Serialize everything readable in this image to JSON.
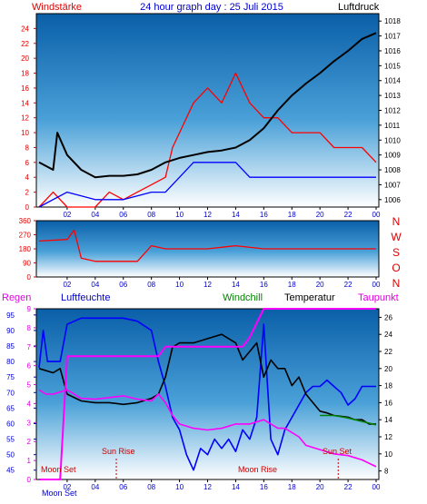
{
  "header": {
    "title": "24 hour graph day : 25 Juli 2015",
    "left_label": "Windstärke",
    "right_label": "Luftdruck"
  },
  "panel3_labels": {
    "regen": "Regen",
    "luftfeuchte": "Luftfeuchte",
    "windchill": "Windchill",
    "temperatur": "Temperatur",
    "taupunkt": "Taupunkt"
  },
  "compass_labels": [
    "N",
    "W",
    "S",
    "O",
    "N"
  ],
  "annotations": {
    "moon_set": "Moon Set",
    "sun_rise": "Sun Rise",
    "moon_rise": "Moon Rise",
    "sun_set": "Sun Set"
  },
  "colors": {
    "panel_top": "#0a5fa8",
    "panel_bottom": "#ffffff",
    "wind": "#ff0000",
    "gust": "#0000ff",
    "pressure": "#000000",
    "humidity": "#0000ff",
    "temperature": "#000000",
    "dewpoint": "#ff00ff",
    "rain": "#ff00ff",
    "windchill": "#008000",
    "border": "#000000"
  },
  "chart_data": [
    {
      "type": "line",
      "name": "wind-pressure",
      "x_ticks": [
        "02",
        "04",
        "06",
        "08",
        "10",
        "12",
        "14",
        "16",
        "18",
        "20",
        "22",
        "00"
      ],
      "left_axis": {
        "label": "Windstärke",
        "ticks": [
          0,
          2,
          4,
          6,
          8,
          10,
          12,
          14,
          16,
          18,
          20,
          22,
          24
        ],
        "ylim": [
          0,
          26
        ]
      },
      "right_axis": {
        "label": "Luftdruck",
        "ticks": [
          1006,
          1007,
          1008,
          1009,
          1010,
          1011,
          1012,
          1013,
          1014,
          1015,
          1016,
          1017,
          1018
        ],
        "ylim": [
          1005.5,
          1018.5
        ]
      },
      "series": [
        {
          "key": "windstaerke",
          "axis": "left",
          "x": [
            0,
            1,
            2,
            3,
            4,
            5,
            6,
            7,
            8,
            9,
            9.5,
            10,
            11,
            12,
            13,
            14,
            15,
            16,
            17,
            18,
            19,
            20,
            21,
            22,
            23,
            24
          ],
          "values": [
            0,
            2,
            0,
            0,
            0,
            2,
            1,
            2,
            3,
            4,
            8,
            10,
            14,
            16,
            14,
            18,
            14,
            12,
            12,
            10,
            10,
            10,
            8,
            8,
            8,
            6
          ]
        },
        {
          "key": "boeen",
          "axis": "left",
          "x": [
            0,
            2,
            4,
            6,
            8,
            9,
            10,
            11,
            12,
            13,
            14,
            15,
            16,
            17,
            18,
            19,
            20,
            21,
            22,
            23,
            24
          ],
          "values": [
            0,
            2,
            1,
            1,
            2,
            2,
            4,
            6,
            6,
            6,
            6,
            4,
            4,
            4,
            4,
            4,
            4,
            4,
            4,
            4,
            4
          ]
        },
        {
          "key": "luftdruck",
          "axis": "right",
          "x": [
            0,
            1,
            1.3,
            2,
            3,
            4,
            5,
            6,
            7,
            8,
            9,
            10,
            11,
            12,
            13,
            14,
            15,
            16,
            17,
            18,
            19,
            20,
            21,
            22,
            23,
            24
          ],
          "values": [
            1008.5,
            1008,
            1010.5,
            1009,
            1008,
            1007.5,
            1007.6,
            1007.6,
            1007.7,
            1008,
            1008.5,
            1008.8,
            1009,
            1009.2,
            1009.3,
            1009.5,
            1010,
            1010.8,
            1012,
            1013,
            1013.8,
            1014.5,
            1015.3,
            1016,
            1016.8,
            1017.2
          ]
        }
      ]
    },
    {
      "type": "line",
      "name": "wind-direction",
      "x_ticks": [
        "02",
        "04",
        "06",
        "08",
        "10",
        "12",
        "14",
        "16",
        "18",
        "20",
        "22",
        "00"
      ],
      "left_axis": {
        "ticks": [
          0,
          90,
          180,
          270,
          360
        ],
        "ylim": [
          0,
          360
        ]
      },
      "right_axis": {
        "ticks": [
          "N",
          "W",
          "S",
          "O",
          "N"
        ]
      },
      "series": [
        {
          "key": "windrichtung",
          "x": [
            0,
            2,
            2.5,
            3,
            4,
            5,
            6,
            7,
            8,
            9,
            10,
            12,
            14,
            16,
            18,
            20,
            22,
            24
          ],
          "values": [
            230,
            240,
            300,
            120,
            100,
            100,
            100,
            100,
            200,
            180,
            180,
            180,
            200,
            180,
            180,
            180,
            180,
            180
          ]
        }
      ]
    },
    {
      "type": "line",
      "name": "climate",
      "x_ticks": [
        "02",
        "04",
        "06",
        "08",
        "10",
        "12",
        "14",
        "16",
        "18",
        "20",
        "22",
        "00"
      ],
      "left_axis": {
        "label": "Luftfeuchte",
        "ticks": [
          45,
          50,
          55,
          60,
          65,
          70,
          75,
          80,
          85,
          90,
          95
        ],
        "ylim": [
          42,
          97
        ]
      },
      "rain_axis": {
        "label": "Regen",
        "ticks": [
          0,
          1,
          2,
          3,
          4,
          5,
          6,
          7,
          8,
          9
        ],
        "ylim": [
          0,
          9
        ]
      },
      "right_axis": {
        "label": "Temperatur",
        "ticks": [
          8,
          10,
          12,
          14,
          16,
          18,
          20,
          22,
          24,
          26
        ],
        "ylim": [
          7,
          27
        ]
      },
      "series": [
        {
          "key": "luftfeuchte",
          "axis": "left",
          "x": [
            0,
            0.3,
            0.6,
            1,
            1.5,
            2,
            3,
            4,
            5,
            6,
            7,
            8,
            8.5,
            9,
            9.5,
            10,
            10.5,
            11,
            11.5,
            12,
            12.5,
            13,
            13.5,
            14,
            14.5,
            15,
            15.5,
            16,
            16.5,
            17,
            17.5,
            18,
            18.5,
            19,
            19.5,
            20,
            20.5,
            21,
            21.5,
            22,
            22.5,
            23,
            23.5,
            24
          ],
          "values": [
            78,
            90,
            80,
            80,
            80,
            92,
            94,
            94,
            94,
            94,
            93,
            90,
            80,
            72,
            62,
            58,
            50,
            45,
            52,
            50,
            55,
            52,
            55,
            51,
            58,
            55,
            62,
            92,
            55,
            50,
            58,
            62,
            66,
            70,
            72,
            72,
            74,
            72,
            70,
            66,
            68,
            72,
            72,
            72
          ]
        },
        {
          "key": "temperatur",
          "axis": "right",
          "x": [
            0,
            1,
            1.5,
            2,
            3,
            4,
            5,
            6,
            7,
            8,
            8.5,
            9,
            9.5,
            10,
            11,
            12,
            13,
            14,
            14.5,
            15,
            15.5,
            16,
            16.5,
            17,
            17.5,
            18,
            18.5,
            19,
            19.5,
            20,
            20.5,
            21,
            21.5,
            22,
            22.5,
            23,
            23.5,
            24
          ],
          "values": [
            20,
            19.5,
            20,
            17,
            16.2,
            16,
            16,
            15.8,
            16,
            16.5,
            17,
            19,
            22.5,
            23,
            23,
            23.5,
            24,
            23,
            21,
            22,
            23,
            19,
            21,
            20,
            20,
            18,
            19,
            17,
            16,
            15,
            14.8,
            14.5,
            14.4,
            14.3,
            14,
            14,
            13.5,
            13.5
          ]
        },
        {
          "key": "windchill",
          "axis": "right",
          "x": [
            20,
            21,
            22,
            23,
            24
          ],
          "values": [
            14.5,
            14.5,
            14.2,
            13.8,
            13.4
          ]
        },
        {
          "key": "taupunkt",
          "axis": "right",
          "x": [
            0,
            0.5,
            1,
            2,
            3,
            4,
            5,
            6,
            7,
            8,
            8.5,
            9,
            9.5,
            10,
            11,
            12,
            13,
            14,
            15,
            16,
            17,
            17.5,
            18,
            18.5,
            19,
            20,
            21,
            22,
            23,
            24
          ],
          "values": [
            17.5,
            17,
            17,
            17.5,
            16.5,
            16.4,
            16.6,
            16.8,
            16.4,
            16.2,
            17,
            16,
            14.5,
            13.5,
            13,
            12.8,
            13,
            13.5,
            13.5,
            14,
            13,
            13,
            12.5,
            12,
            11,
            10.5,
            10,
            9.8,
            9.3,
            8.5
          ]
        },
        {
          "key": "regen",
          "axis": "rain",
          "x": [
            0,
            1.5,
            2,
            8.5,
            9,
            14.5,
            15,
            16,
            17,
            24
          ],
          "values": [
            0,
            0,
            6.5,
            6.5,
            7,
            7,
            7.5,
            9,
            9,
            9
          ]
        }
      ]
    }
  ]
}
